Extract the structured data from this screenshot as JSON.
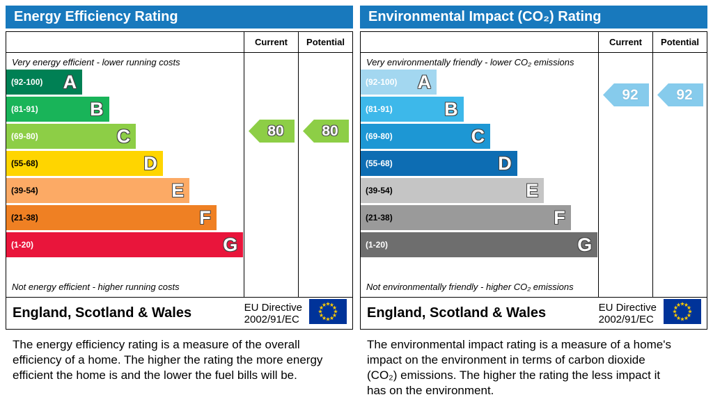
{
  "panels": [
    {
      "title": "Energy Efficiency Rating",
      "columns": {
        "current": "Current",
        "potential": "Potential"
      },
      "top_caption": "Very energy efficient - lower running costs",
      "bottom_caption": "Not energy efficient - higher running costs",
      "bands": [
        {
          "letter": "A",
          "range": "(92-100)",
          "color": "#008054",
          "label_color": "#ffffff"
        },
        {
          "letter": "B",
          "range": "(81-91)",
          "color": "#19b459",
          "label_color": "#ffffff"
        },
        {
          "letter": "C",
          "range": "(69-80)",
          "color": "#8dce46",
          "label_color": "#ffffff"
        },
        {
          "letter": "D",
          "range": "(55-68)",
          "color": "#ffd500",
          "label_color": "#000000"
        },
        {
          "letter": "E",
          "range": "(39-54)",
          "color": "#fcaa65",
          "label_color": "#000000"
        },
        {
          "letter": "F",
          "range": "(21-38)",
          "color": "#ef8023",
          "label_color": "#000000"
        },
        {
          "letter": "G",
          "range": "(1-20)",
          "color": "#e9153b",
          "label_color": "#ffffff"
        }
      ],
      "arrows": {
        "current": {
          "value": "80",
          "color": "#8dce46",
          "text_color": "#ffffff"
        },
        "potential": {
          "value": "80",
          "color": "#8dce46",
          "text_color": "#ffffff"
        }
      },
      "footer": {
        "region": "England, Scotland & Wales",
        "directive_line1": "EU Directive",
        "directive_line2": "2002/91/EC"
      },
      "description": "The energy efficiency rating is a measure of the overall efficiency of a home. The higher the rating the more energy efficient the home is and the lower the fuel bills will be."
    },
    {
      "title": "Environmental Impact (CO₂) Rating",
      "columns": {
        "current": "Current",
        "potential": "Potential"
      },
      "top_caption": "Very environmentally friendly - lower CO₂ emissions",
      "bottom_caption": "Not environmentally friendly - higher CO₂ emissions",
      "bands": [
        {
          "letter": "A",
          "range": "(92-100)",
          "color": "#a3d7f0",
          "label_color": "#ffffff"
        },
        {
          "letter": "B",
          "range": "(81-91)",
          "color": "#3db8ea",
          "label_color": "#ffffff"
        },
        {
          "letter": "C",
          "range": "(69-80)",
          "color": "#1d97d4",
          "label_color": "#ffffff"
        },
        {
          "letter": "D",
          "range": "(55-68)",
          "color": "#0d6db3",
          "label_color": "#ffffff"
        },
        {
          "letter": "E",
          "range": "(39-54)",
          "color": "#c5c5c5",
          "label_color": "#000000"
        },
        {
          "letter": "F",
          "range": "(21-38)",
          "color": "#9a9a9a",
          "label_color": "#000000"
        },
        {
          "letter": "G",
          "range": "(1-20)",
          "color": "#6e6e6e",
          "label_color": "#ffffff"
        }
      ],
      "arrows": {
        "current": {
          "value": "92",
          "color": "#86cbec",
          "text_color": "#ffffff"
        },
        "potential": {
          "value": "92",
          "color": "#86cbec",
          "text_color": "#ffffff"
        }
      },
      "footer": {
        "region": "England, Scotland & Wales",
        "directive_line1": "EU Directive",
        "directive_line2": "2002/91/EC"
      },
      "description": "The environmental impact rating is a measure of a home's impact on the environment in terms of carbon dioxide (CO₂) emissions. The higher the rating the less impact it has on the environment."
    }
  ],
  "chart_data": [
    {
      "type": "bar",
      "title": "Energy Efficiency Rating",
      "categories": [
        "A (92-100)",
        "B (81-91)",
        "C (69-80)",
        "D (55-68)",
        "E (39-54)",
        "F (21-38)",
        "G (1-20)"
      ],
      "series": [
        {
          "name": "Current",
          "values": [
            80
          ]
        },
        {
          "name": "Potential",
          "values": [
            80
          ]
        }
      ],
      "current": 80,
      "potential": 80,
      "current_band": "C",
      "potential_band": "C",
      "value_range": [
        1,
        100
      ],
      "region": "England, Scotland & Wales",
      "directive": "EU Directive 2002/91/EC"
    },
    {
      "type": "bar",
      "title": "Environmental Impact (CO₂) Rating",
      "categories": [
        "A (92-100)",
        "B (81-91)",
        "C (69-80)",
        "D (55-68)",
        "E (39-54)",
        "F (21-38)",
        "G (1-20)"
      ],
      "series": [
        {
          "name": "Current",
          "values": [
            92
          ]
        },
        {
          "name": "Potential",
          "values": [
            92
          ]
        }
      ],
      "current": 92,
      "potential": 92,
      "current_band": "A",
      "potential_band": "A",
      "value_range": [
        1,
        100
      ],
      "region": "England, Scotland & Wales",
      "directive": "EU Directive 2002/91/EC"
    }
  ]
}
